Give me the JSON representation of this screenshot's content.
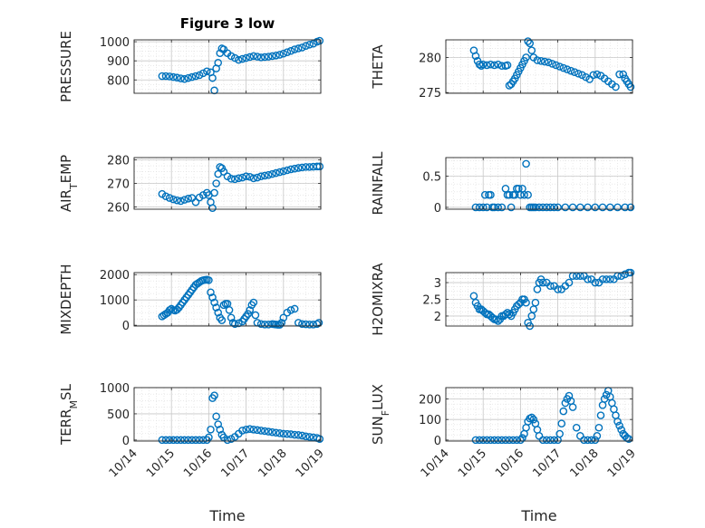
{
  "chart_data": {
    "title": "Figure 3 low",
    "xlabel": "Time",
    "date_ticks": [
      "10/14",
      "10/15",
      "10/16",
      "10/17",
      "10/18",
      "10/19"
    ],
    "marker_color": "#0072BD",
    "xlim": [
      0,
      5
    ],
    "panels": [
      {
        "type": "scatter",
        "ylabel": "PRESSURE",
        "ylabel_sub": "",
        "ylim": [
          730,
          1010
        ],
        "yticks": [
          "800",
          "900",
          "1000"
        ],
        "ytick_values": [
          800,
          900,
          1000
        ],
        "x": [
          0.75,
          0.85,
          0.95,
          1.05,
          1.15,
          1.25,
          1.35,
          1.45,
          1.55,
          1.65,
          1.75,
          1.85,
          1.95,
          2.05,
          2.1,
          2.15,
          2.2,
          2.25,
          2.3,
          2.35,
          2.4,
          2.5,
          2.6,
          2.7,
          2.8,
          2.9,
          3.0,
          3.1,
          3.2,
          3.3,
          3.4,
          3.5,
          3.6,
          3.7,
          3.8,
          3.9,
          4.0,
          4.1,
          4.2,
          4.3,
          4.4,
          4.5,
          4.6,
          4.7,
          4.8,
          4.9,
          4.97
        ],
        "y": [
          820,
          820,
          818,
          815,
          812,
          808,
          805,
          810,
          815,
          820,
          825,
          835,
          845,
          840,
          810,
          745,
          860,
          890,
          940,
          965,
          960,
          940,
          925,
          915,
          905,
          910,
          915,
          920,
          925,
          922,
          918,
          920,
          922,
          925,
          928,
          932,
          938,
          945,
          952,
          960,
          965,
          970,
          978,
          985,
          990,
          1000,
          1005
        ]
      },
      {
        "type": "scatter",
        "ylabel": "THETA",
        "ylabel_sub": "",
        "ylim": [
          274.9,
          282.5
        ],
        "yticks": [
          "275",
          "280"
        ],
        "ytick_values": [
          275,
          280
        ],
        "x": [
          0.75,
          0.8,
          0.85,
          0.9,
          0.95,
          1.0,
          1.1,
          1.2,
          1.3,
          1.4,
          1.5,
          1.6,
          1.65,
          1.7,
          1.75,
          1.8,
          1.85,
          1.9,
          1.95,
          2.0,
          2.05,
          2.1,
          2.15,
          2.2,
          2.25,
          2.3,
          2.35,
          2.45,
          2.55,
          2.65,
          2.75,
          2.85,
          2.95,
          3.05,
          3.15,
          3.25,
          3.35,
          3.45,
          3.55,
          3.65,
          3.75,
          3.85,
          3.95,
          4.05,
          4.15,
          4.25,
          4.35,
          4.45,
          4.55,
          4.65,
          4.75,
          4.8,
          4.85,
          4.9,
          4.95
        ],
        "y": [
          281,
          280.2,
          279.5,
          279,
          278.8,
          279,
          278.9,
          279,
          278.9,
          279,
          278.8,
          278.8,
          278.9,
          276,
          276.2,
          276.6,
          277,
          277.5,
          278,
          278.5,
          279,
          279.5,
          280,
          282.3,
          282,
          281,
          280,
          279.6,
          279.5,
          279.4,
          279.3,
          279.1,
          278.9,
          278.7,
          278.5,
          278.3,
          278.1,
          277.9,
          277.7,
          277.5,
          277.2,
          276.9,
          277.5,
          277.6,
          277.4,
          277,
          276.6,
          276.2,
          275.8,
          277.6,
          277.6,
          277,
          276.6,
          276.2,
          275.8
        ]
      },
      {
        "type": "scatter",
        "ylabel": "AIR",
        "ylabel_sub": "T",
        "ylabel_rest": "EMP",
        "ylim": [
          259,
          281
        ],
        "yticks": [
          "260",
          "270",
          "280"
        ],
        "ytick_values": [
          260,
          270,
          280
        ],
        "x": [
          0.75,
          0.85,
          0.95,
          1.05,
          1.15,
          1.25,
          1.35,
          1.45,
          1.55,
          1.65,
          1.75,
          1.85,
          1.95,
          2.0,
          2.05,
          2.1,
          2.15,
          2.2,
          2.25,
          2.3,
          2.35,
          2.4,
          2.5,
          2.6,
          2.7,
          2.8,
          2.9,
          3.0,
          3.1,
          3.2,
          3.3,
          3.4,
          3.5,
          3.6,
          3.7,
          3.8,
          3.9,
          4.0,
          4.1,
          4.2,
          4.3,
          4.4,
          4.5,
          4.6,
          4.7,
          4.8,
          4.9,
          4.97
        ],
        "y": [
          265.5,
          264.5,
          263.8,
          263.2,
          262.8,
          262.5,
          263,
          263.5,
          263.8,
          262,
          264,
          265,
          266,
          265,
          262,
          259.5,
          266,
          270,
          274,
          277,
          276.5,
          275,
          273,
          272,
          271.8,
          272.2,
          272.5,
          273,
          272.8,
          272.2,
          272.5,
          273,
          273.3,
          273.6,
          274,
          274.4,
          274.8,
          275.2,
          275.6,
          276,
          276.3,
          276.6,
          276.8,
          277,
          277,
          277.1,
          277.2,
          277.2
        ]
      },
      {
        "type": "scatter",
        "ylabel": "RAINFALL",
        "ylabel_sub": "",
        "ylim": [
          -0.03,
          0.8
        ],
        "yticks": [
          "0",
          "0.5"
        ],
        "ytick_values": [
          0,
          0.5
        ],
        "x": [
          0.8,
          0.9,
          1.0,
          1.05,
          1.1,
          1.15,
          1.2,
          1.25,
          1.3,
          1.4,
          1.5,
          1.6,
          1.65,
          1.7,
          1.75,
          1.8,
          1.85,
          1.9,
          1.95,
          2.0,
          2.05,
          2.1,
          2.15,
          2.2,
          2.25,
          2.3,
          2.35,
          2.4,
          2.5,
          2.6,
          2.7,
          2.8,
          2.9,
          3.0,
          3.2,
          3.4,
          3.6,
          3.8,
          4.0,
          4.2,
          4.4,
          4.6,
          4.8,
          4.95
        ],
        "y": [
          0,
          0,
          0,
          0.2,
          0,
          0.2,
          0.2,
          0,
          0,
          0,
          0,
          0.3,
          0.2,
          0.2,
          0,
          0.2,
          0.2,
          0.3,
          0.3,
          0.2,
          0.3,
          0.2,
          0.7,
          0.2,
          0,
          0,
          0,
          0,
          0,
          0,
          0,
          0,
          0,
          0,
          0,
          0,
          0,
          0,
          0,
          0,
          0,
          0,
          0,
          0
        ]
      },
      {
        "type": "scatter",
        "ylabel": "MIXDEPTH",
        "ylabel_sub": "",
        "ylim": [
          -30,
          2080
        ],
        "yticks": [
          "0",
          "1000",
          "2000"
        ],
        "ytick_values": [
          0,
          1000,
          2000
        ],
        "x": [
          0.75,
          0.8,
          0.85,
          0.9,
          0.95,
          1.0,
          1.05,
          1.1,
          1.15,
          1.2,
          1.25,
          1.3,
          1.35,
          1.4,
          1.45,
          1.5,
          1.55,
          1.6,
          1.65,
          1.7,
          1.75,
          1.8,
          1.85,
          1.9,
          1.95,
          2.0,
          2.05,
          2.1,
          2.15,
          2.2,
          2.25,
          2.3,
          2.35,
          2.4,
          2.45,
          2.5,
          2.55,
          2.6,
          2.65,
          2.7,
          2.8,
          2.9,
          2.95,
          3.0,
          3.05,
          3.1,
          3.15,
          3.2,
          3.25,
          3.3,
          3.4,
          3.5,
          3.6,
          3.7,
          3.75,
          3.8,
          3.85,
          3.9,
          3.95,
          4.0,
          4.1,
          4.2,
          4.3,
          4.4,
          4.5,
          4.6,
          4.7,
          4.8,
          4.9,
          4.95
        ],
        "y": [
          350,
          400,
          450,
          500,
          600,
          650,
          600,
          580,
          620,
          700,
          800,
          900,
          1000,
          1100,
          1200,
          1300,
          1400,
          1500,
          1600,
          1650,
          1700,
          1750,
          1780,
          1790,
          1800,
          1780,
          1300,
          1100,
          900,
          700,
          500,
          300,
          200,
          800,
          850,
          850,
          600,
          300,
          100,
          50,
          80,
          150,
          250,
          350,
          450,
          600,
          800,
          900,
          400,
          100,
          50,
          30,
          30,
          50,
          40,
          30,
          20,
          20,
          100,
          300,
          500,
          600,
          650,
          100,
          50,
          40,
          30,
          30,
          50,
          100
        ],
        "y_display": "points"
      },
      {
        "type": "scatter",
        "ylabel": "H2OMIXRA",
        "ylabel_sub": "",
        "ylim": [
          1.7,
          3.3
        ],
        "yticks": [
          "2",
          "2.5",
          "3"
        ],
        "ytick_values": [
          2,
          2.5,
          3
        ],
        "x": [
          0.75,
          0.8,
          0.85,
          0.9,
          0.95,
          1.0,
          1.05,
          1.1,
          1.15,
          1.2,
          1.25,
          1.3,
          1.35,
          1.4,
          1.45,
          1.5,
          1.55,
          1.6,
          1.65,
          1.7,
          1.75,
          1.8,
          1.85,
          1.9,
          1.95,
          2.0,
          2.05,
          2.1,
          2.15,
          2.2,
          2.25,
          2.3,
          2.35,
          2.4,
          2.45,
          2.5,
          2.55,
          2.6,
          2.7,
          2.8,
          2.9,
          3.0,
          3.1,
          3.2,
          3.3,
          3.4,
          3.5,
          3.6,
          3.7,
          3.8,
          3.9,
          4.0,
          4.1,
          4.2,
          4.3,
          4.4,
          4.5,
          4.6,
          4.7,
          4.8,
          4.9,
          4.95
        ],
        "y": [
          2.6,
          2.4,
          2.3,
          2.2,
          2.2,
          2.15,
          2.1,
          2.05,
          2.05,
          2.0,
          1.95,
          1.9,
          1.9,
          1.85,
          1.9,
          2.0,
          2.0,
          2.05,
          2.1,
          2.05,
          2.0,
          2.1,
          2.2,
          2.3,
          2.35,
          2.4,
          2.5,
          2.5,
          2.4,
          1.8,
          1.7,
          2.0,
          2.2,
          2.4,
          2.8,
          3.0,
          3.1,
          3.0,
          3.0,
          2.9,
          2.9,
          2.8,
          2.8,
          2.9,
          3.0,
          3.2,
          3.2,
          3.2,
          3.2,
          3.1,
          3.1,
          3.0,
          3.0,
          3.1,
          3.1,
          3.1,
          3.1,
          3.2,
          3.2,
          3.25,
          3.3,
          3.3
        ]
      },
      {
        "type": "scatter",
        "ylabel": "TERR",
        "ylabel_sub": "M",
        "ylabel_rest": "SL",
        "ylim": [
          -20,
          1000
        ],
        "yticks": [
          "0",
          "500",
          "1000"
        ],
        "ytick_values": [
          0,
          500,
          1000
        ],
        "x": [
          0.75,
          0.85,
          0.95,
          1.05,
          1.15,
          1.25,
          1.35,
          1.45,
          1.55,
          1.65,
          1.75,
          1.85,
          1.95,
          2.0,
          2.05,
          2.1,
          2.15,
          2.2,
          2.25,
          2.3,
          2.35,
          2.4,
          2.5,
          2.6,
          2.7,
          2.8,
          2.9,
          3.0,
          3.1,
          3.2,
          3.3,
          3.4,
          3.5,
          3.6,
          3.7,
          3.8,
          3.9,
          4.0,
          4.1,
          4.2,
          4.3,
          4.4,
          4.5,
          4.6,
          4.7,
          4.8,
          4.9,
          4.97
        ],
        "y": [
          0,
          0,
          0,
          0,
          0,
          0,
          0,
          0,
          0,
          0,
          0,
          0,
          0,
          50,
          200,
          800,
          850,
          450,
          300,
          200,
          100,
          50,
          0,
          20,
          60,
          120,
          180,
          200,
          210,
          200,
          190,
          180,
          170,
          160,
          150,
          140,
          130,
          120,
          115,
          110,
          100,
          95,
          85,
          70,
          60,
          50,
          40,
          20
        ]
      },
      {
        "type": "scatter",
        "ylabel": "SUN",
        "ylabel_sub": "F",
        "ylabel_rest": "LUX",
        "ylim": [
          -5,
          255
        ],
        "yticks": [
          "0",
          "100",
          "200"
        ],
        "ytick_values": [
          0,
          100,
          200
        ],
        "x": [
          0.8,
          0.9,
          1.0,
          1.1,
          1.2,
          1.3,
          1.4,
          1.5,
          1.6,
          1.7,
          1.8,
          1.9,
          2.0,
          2.05,
          2.1,
          2.15,
          2.2,
          2.25,
          2.3,
          2.35,
          2.4,
          2.45,
          2.5,
          2.6,
          2.7,
          2.8,
          2.9,
          3.0,
          3.05,
          3.1,
          3.15,
          3.2,
          3.25,
          3.3,
          3.35,
          3.4,
          3.5,
          3.6,
          3.7,
          3.8,
          3.9,
          4.0,
          4.05,
          4.1,
          4.15,
          4.2,
          4.25,
          4.3,
          4.35,
          4.4,
          4.45,
          4.5,
          4.55,
          4.6,
          4.65,
          4.7,
          4.75,
          4.8,
          4.85,
          4.9
        ],
        "y": [
          0,
          0,
          0,
          0,
          0,
          0,
          0,
          0,
          0,
          0,
          0,
          0,
          0,
          10,
          30,
          60,
          90,
          105,
          110,
          100,
          80,
          50,
          20,
          0,
          0,
          0,
          0,
          0,
          30,
          80,
          140,
          180,
          200,
          215,
          190,
          160,
          60,
          20,
          0,
          0,
          0,
          0,
          20,
          60,
          120,
          170,
          200,
          220,
          240,
          210,
          180,
          150,
          120,
          90,
          70,
          50,
          30,
          20,
          10,
          5
        ]
      }
    ]
  }
}
